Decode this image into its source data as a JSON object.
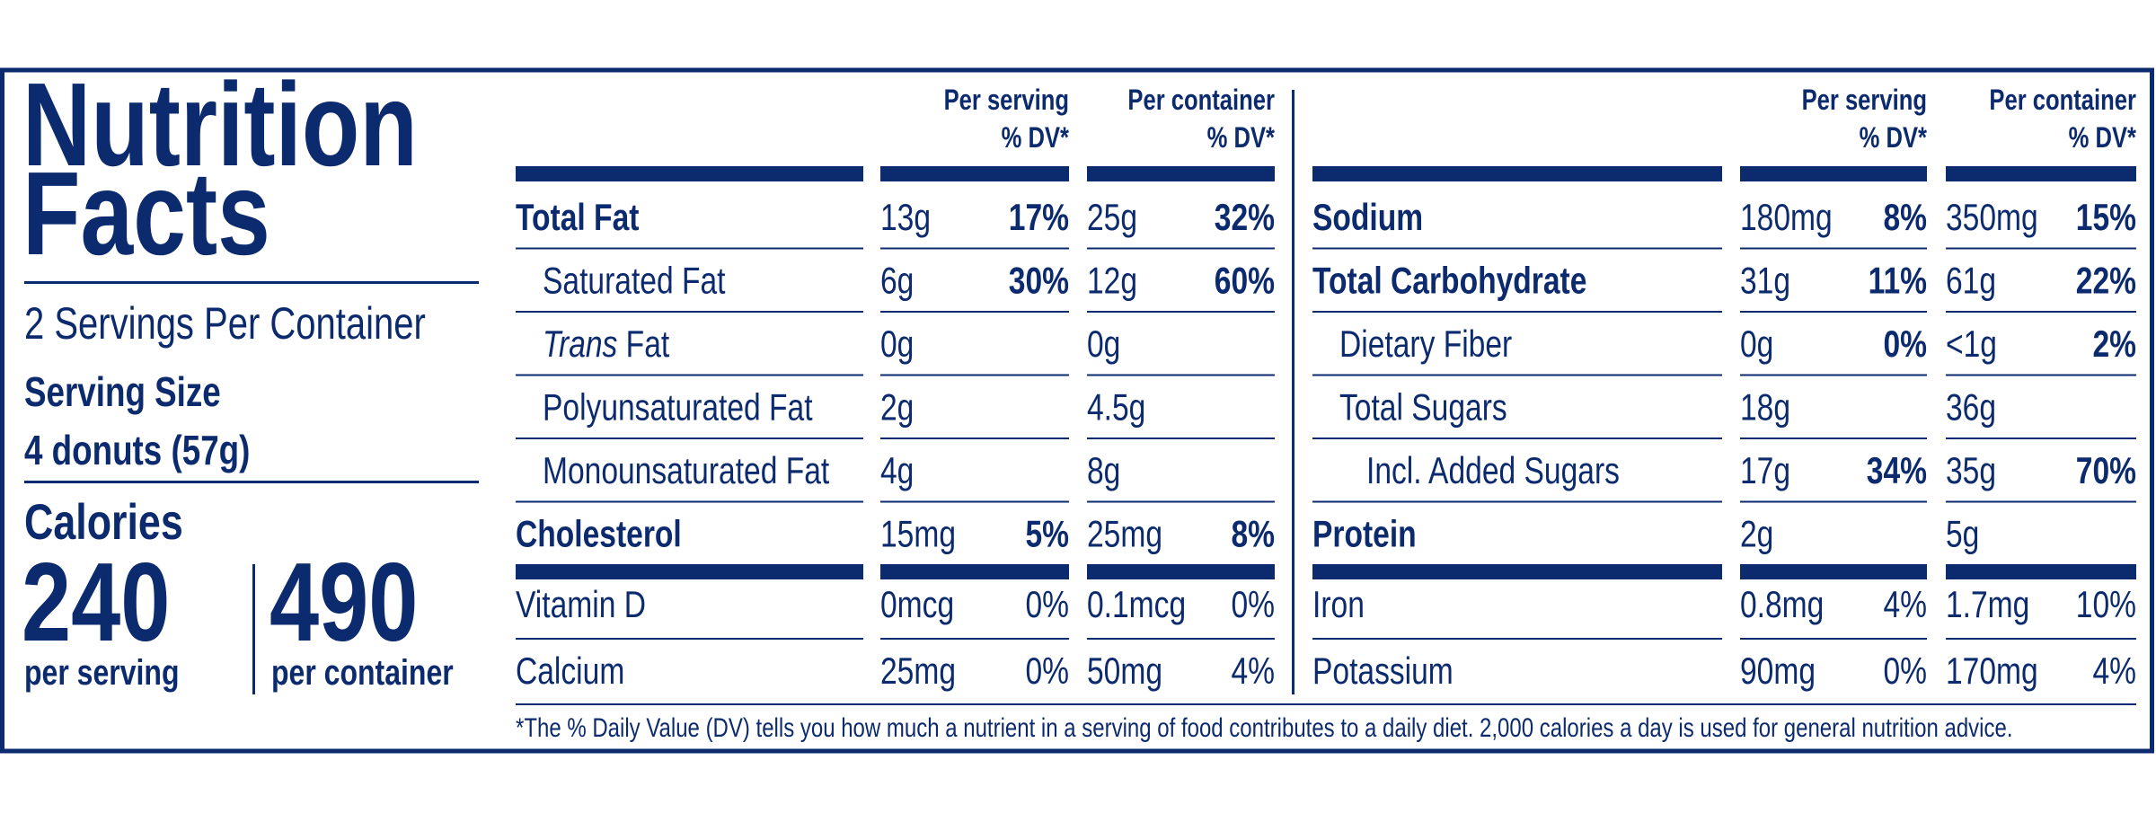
{
  "title": [
    "Nutrition",
    "Facts"
  ],
  "servings_per_container": "2 Servings Per Container",
  "serving_size": {
    "label": "Serving Size",
    "value": "4 donuts (57g)"
  },
  "calories": {
    "label": "Calories",
    "per_serving": {
      "value": "240",
      "label": "per serving"
    },
    "per_container": {
      "value": "490",
      "label": "per container"
    }
  },
  "tables": [
    {
      "headers": {
        "per_serving": [
          "Per serving",
          "% DV*"
        ],
        "per_container": [
          "Per container",
          "% DV*"
        ]
      },
      "rows": [
        {
          "name": "Total Fat",
          "bold": true,
          "indent": 0,
          "serving": [
            "13g",
            "17%"
          ],
          "container": [
            "25g",
            "32%"
          ]
        },
        {
          "name": "Saturated Fat",
          "bold": false,
          "indent": 1,
          "serving": [
            "6g",
            "30%"
          ],
          "container": [
            "12g",
            "60%"
          ]
        },
        {
          "name_italic": "Trans",
          "name": "Fat",
          "bold": false,
          "indent": 1,
          "serving": [
            "0g"
          ],
          "container": [
            "0g"
          ]
        },
        {
          "name": "Polyunsaturated Fat",
          "bold": false,
          "indent": 1,
          "serving": [
            "2g"
          ],
          "container": [
            "4.5g"
          ]
        },
        {
          "name": "Monounsaturated Fat",
          "bold": false,
          "indent": 1,
          "serving": [
            "4g"
          ],
          "container": [
            "8g"
          ]
        },
        {
          "name": "Cholesterol",
          "bold": true,
          "indent": 0,
          "serving": [
            "15mg",
            "5%"
          ],
          "container": [
            "25mg",
            "8%"
          ]
        },
        {
          "name": "Vitamin D",
          "bold": false,
          "indent": 0,
          "thick_rule_above": true,
          "dv_bold": false,
          "serving": [
            "0mcg",
            "0%"
          ],
          "container": [
            "0.1mcg",
            "0%"
          ]
        },
        {
          "name": "Calcium",
          "bold": false,
          "indent": 0,
          "dv_bold": false,
          "serving": [
            "25mg",
            "0%"
          ],
          "container": [
            "50mg",
            "4%"
          ]
        }
      ]
    },
    {
      "headers": {
        "per_serving": [
          "Per serving",
          "% DV*"
        ],
        "per_container": [
          "Per container",
          "% DV*"
        ]
      },
      "rows": [
        {
          "name": "Sodium",
          "bold": true,
          "indent": 0,
          "serving": [
            "180mg",
            "8%"
          ],
          "container": [
            "350mg",
            "15%"
          ]
        },
        {
          "name": "Total Carbohydrate",
          "bold": true,
          "indent": 0,
          "serving": [
            "31g",
            "11%"
          ],
          "container": [
            "61g",
            "22%"
          ]
        },
        {
          "name": "Dietary Fiber",
          "bold": false,
          "indent": 1,
          "serving": [
            "0g",
            "0%"
          ],
          "container": [
            "<1g",
            "2%"
          ]
        },
        {
          "name": "Total Sugars",
          "bold": false,
          "indent": 1,
          "serving": [
            "18g"
          ],
          "container": [
            "36g"
          ]
        },
        {
          "name": "Incl. Added Sugars",
          "bold": false,
          "indent": 2,
          "serving": [
            "17g",
            "34%"
          ],
          "container": [
            "35g",
            "70%"
          ]
        },
        {
          "name": "Protein",
          "bold": true,
          "indent": 0,
          "serving": [
            "2g"
          ],
          "container": [
            "5g"
          ]
        },
        {
          "name": "Iron",
          "bold": false,
          "indent": 0,
          "thick_rule_above": true,
          "dv_bold": false,
          "serving": [
            "0.8mg",
            "4%"
          ],
          "container": [
            "1.7mg",
            "10%"
          ]
        },
        {
          "name": "Potassium",
          "bold": false,
          "indent": 0,
          "dv_bold": false,
          "serving": [
            "90mg",
            "0%"
          ],
          "container": [
            "170mg",
            "4%"
          ]
        }
      ]
    }
  ],
  "footnote": "*The % Daily Value (DV) tells you how much a nutrient in a serving of food contributes to a daily diet. 2,000 calories a day is used for general nutrition advice."
}
